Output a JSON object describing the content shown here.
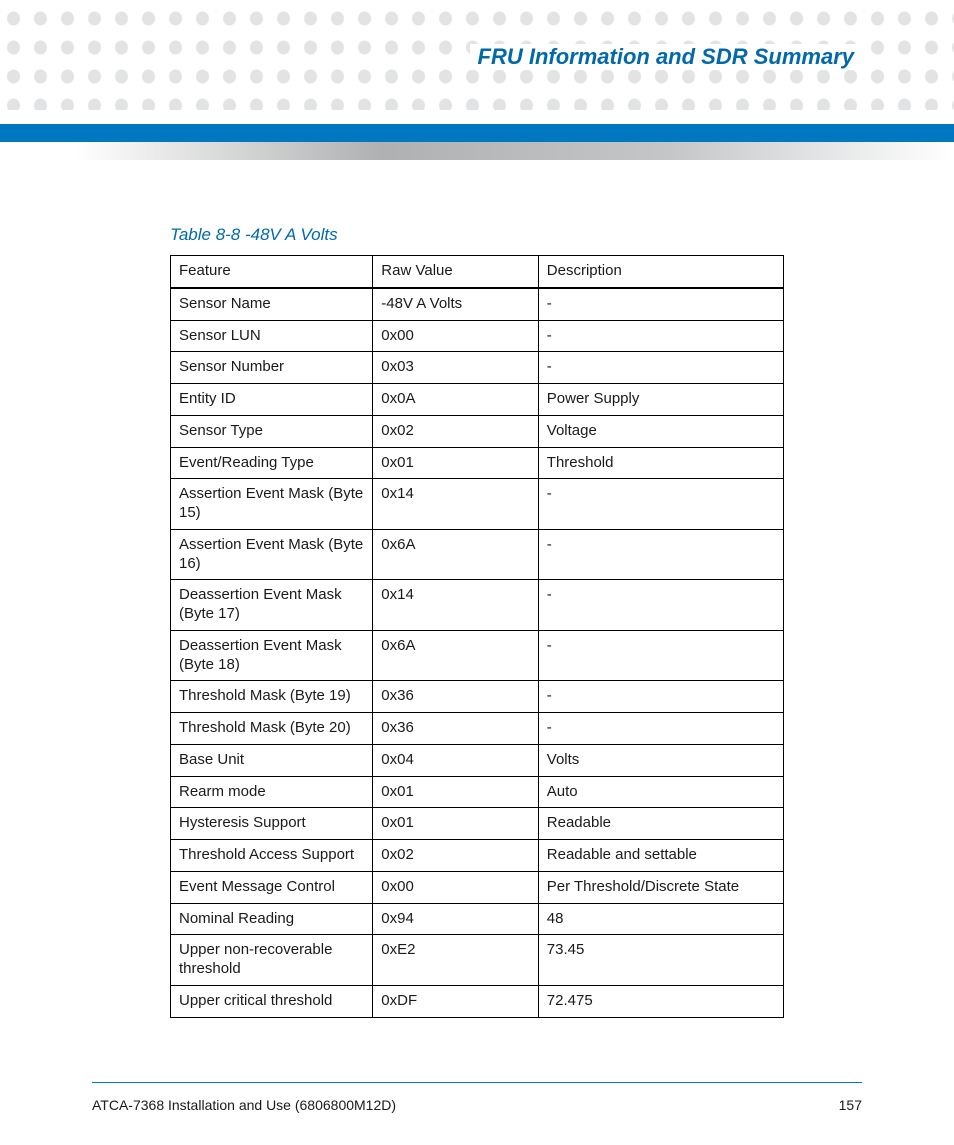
{
  "header": {
    "section_title": "FRU Information and SDR Summary"
  },
  "table": {
    "caption": "Table 8-8 -48V A Volts",
    "columns": [
      "Feature",
      "Raw Value",
      "Description"
    ],
    "rows": [
      [
        "Sensor Name",
        "-48V A Volts",
        "-"
      ],
      [
        "Sensor LUN",
        "0x00",
        "-"
      ],
      [
        "Sensor Number",
        "0x03",
        "-"
      ],
      [
        "Entity ID",
        "0x0A",
        "Power Supply"
      ],
      [
        "Sensor Type",
        "0x02",
        "Voltage"
      ],
      [
        "Event/Reading Type",
        "0x01",
        "Threshold"
      ],
      [
        "Assertion Event Mask (Byte 15)",
        "0x14",
        "-"
      ],
      [
        "Assertion Event Mask (Byte 16)",
        "0x6A",
        "-"
      ],
      [
        "Deassertion Event Mask (Byte 17)",
        "0x14",
        "-"
      ],
      [
        "Deassertion Event Mask (Byte 18)",
        "0x6A",
        "-"
      ],
      [
        "Threshold Mask (Byte 19)",
        "0x36",
        "-"
      ],
      [
        "Threshold Mask (Byte 20)",
        "0x36",
        "-"
      ],
      [
        "Base Unit",
        "0x04",
        "Volts"
      ],
      [
        "Rearm mode",
        "0x01",
        "Auto"
      ],
      [
        "Hysteresis Support",
        "0x01",
        "Readable"
      ],
      [
        "Threshold Access Support",
        "0x02",
        "Readable and settable"
      ],
      [
        "Event Message Control",
        "0x00",
        "Per Threshold/Discrete State"
      ],
      [
        "Nominal Reading",
        "0x94",
        "48"
      ],
      [
        "Upper non-recoverable threshold",
        "0xE2",
        "73.45"
      ],
      [
        "Upper critical threshold",
        "0xDF",
        "72.475"
      ]
    ]
  },
  "footer": {
    "doc_title": "ATCA-7368 Installation and Use (6806800M12D)",
    "page_number": "157"
  },
  "style": {
    "accent_color": "#0077c1",
    "title_color": "#0069aa",
    "dot_color": "#d6d7d8",
    "text_color": "#1a1a1a"
  }
}
